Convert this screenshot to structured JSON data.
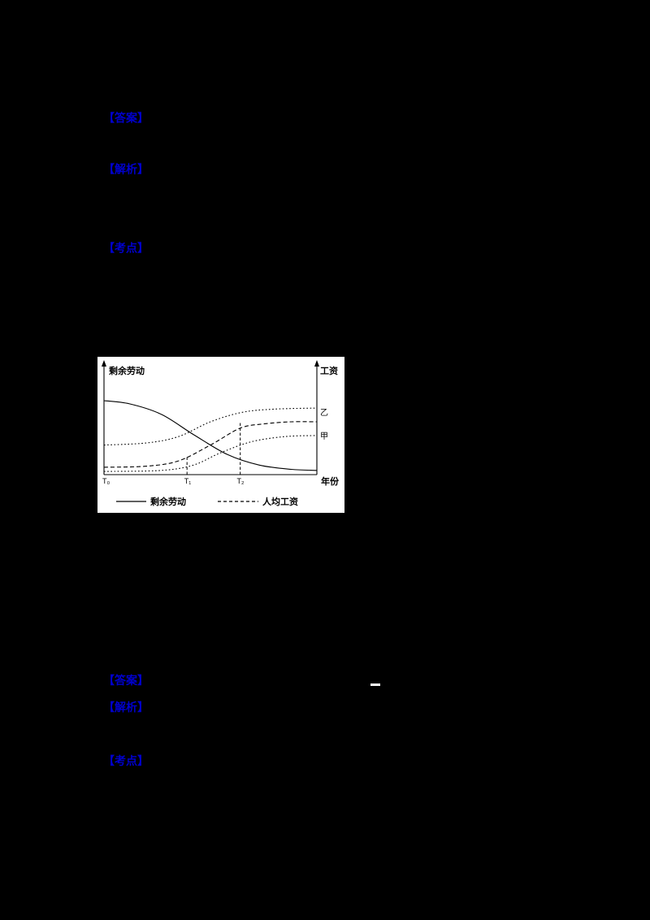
{
  "page": {
    "background": "#000000",
    "marker_color": "#0000cc"
  },
  "markers": [
    {
      "id": "q1-answer",
      "label": "【答案】"
    },
    {
      "id": "q1-analysis",
      "label": "【解析】"
    },
    {
      "id": "q1-keypoints",
      "label": "【考点】"
    },
    {
      "id": "q2-answer",
      "label": "【答案】"
    },
    {
      "id": "q2-analysis",
      "label": "【解析】"
    },
    {
      "id": "q2-keypoints",
      "label": "【考点】"
    }
  ],
  "figure": {
    "left_axis_label": "剩余劳动",
    "right_axis_label": "工资",
    "x_axis_label": "年份",
    "x_ticks": [
      "T₀",
      "T₁",
      "T₂"
    ],
    "curve_labels": {
      "yi": "乙",
      "jia": "甲"
    },
    "legend": [
      {
        "style": "solid",
        "label": "剩余劳动"
      },
      {
        "style": "dashed",
        "label": "人均工资"
      }
    ]
  },
  "chart_data": {
    "type": "line",
    "title": "",
    "xlabel": "年份",
    "ylabel_left": "剩余劳动",
    "ylabel_right": "工资",
    "x_ticks": [
      "T0",
      "T1",
      "T2"
    ],
    "x_tick_positions": [
      0,
      0.39,
      0.64
    ],
    "x_range": [
      0,
      1
    ],
    "y_range": [
      0,
      1
    ],
    "note": "Qualitative S-curves; surplus labor declines over time while wage curves (甲, 乙) and per-capita wage rise; values normalized 0-1",
    "series": [
      {
        "key": "surplus-labor",
        "name": "剩余劳动",
        "style": "solid",
        "points": [
          [
            0,
            0.7
          ],
          [
            0.12,
            0.67
          ],
          [
            0.27,
            0.57
          ],
          [
            0.42,
            0.38
          ],
          [
            0.58,
            0.19
          ],
          [
            0.73,
            0.09
          ],
          [
            0.88,
            0.05
          ],
          [
            1,
            0.04
          ]
        ]
      },
      {
        "key": "wage-yi",
        "name": "工资曲线乙",
        "style": "dotted",
        "points": [
          [
            0,
            0.28
          ],
          [
            0.2,
            0.3
          ],
          [
            0.35,
            0.36
          ],
          [
            0.5,
            0.5
          ],
          [
            0.65,
            0.59
          ],
          [
            0.8,
            0.62
          ],
          [
            1,
            0.63
          ]
        ]
      },
      {
        "key": "avg-wage",
        "name": "人均工资",
        "style": "dashed",
        "points": [
          [
            0,
            0.07
          ],
          [
            0.2,
            0.08
          ],
          [
            0.35,
            0.13
          ],
          [
            0.5,
            0.28
          ],
          [
            0.64,
            0.44
          ],
          [
            0.75,
            0.48
          ],
          [
            0.88,
            0.5
          ],
          [
            1,
            0.5
          ]
        ]
      },
      {
        "key": "wage-jia",
        "name": "工资曲线甲",
        "style": "dotted",
        "points": [
          [
            0,
            0.03
          ],
          [
            0.27,
            0.04
          ],
          [
            0.42,
            0.09
          ],
          [
            0.54,
            0.2
          ],
          [
            0.69,
            0.31
          ],
          [
            0.85,
            0.36
          ],
          [
            1,
            0.37
          ]
        ]
      }
    ],
    "guides": [
      {
        "tick": "T1",
        "x": 0.39,
        "y": 0.185
      },
      {
        "tick": "T2",
        "x": 0.64,
        "y": 0.49
      }
    ]
  }
}
